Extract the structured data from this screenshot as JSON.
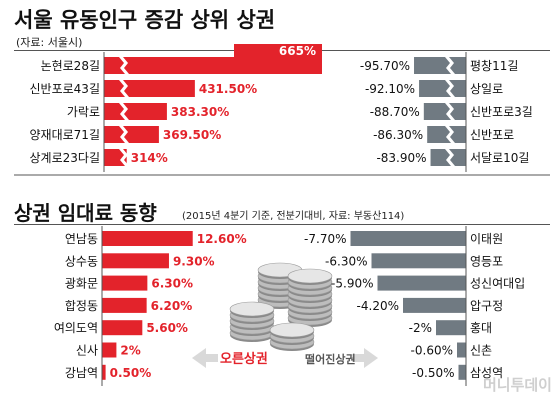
{
  "title": "서울 유동인구 증감 상위 상권",
  "source": "(자료: 서울시)",
  "title2": "상권 임대료 동향",
  "subtitle2": "(2015년 4분기 기준, 전분기대비, 자료: 부동산114)",
  "up_label": "오른상권",
  "down_label": "떨어진상권",
  "watermark": "머니투데이",
  "colors": {
    "red": "#e3232b",
    "grey": "#707a82",
    "line": "#555555"
  },
  "chart_data": [
    {
      "type": "bar",
      "title": "서울 유동인구 증감 상위 상권",
      "series": [
        {
          "name": "",
          "categories": [
            "논현로28길",
            "신반포로43길",
            "가락로",
            "양재대로71길",
            "상계로23다길"
          ],
          "values": [
            665,
            431.5,
            383.3,
            369.5,
            314
          ],
          "labels": [
            "665%",
            "431.50%",
            "383.30%",
            "369.50%",
            "314%"
          ]
        },
        {
          "name": "",
          "categories": [
            "평창11길",
            "상일로",
            "신반포로3길",
            "신반포로",
            "서달로10길"
          ],
          "values": [
            -95.7,
            -92.1,
            -88.7,
            -86.3,
            -83.9
          ],
          "labels": [
            "-95.70%",
            "-92.10%",
            "-88.70%",
            "-86.30%",
            "-83.90%"
          ]
        }
      ]
    },
    {
      "type": "bar",
      "title": "상권 임대료 동향",
      "series": [
        {
          "name": "",
          "categories": [
            "연남동",
            "상수동",
            "광화문",
            "합정동",
            "여의도역",
            "신사",
            "강남역"
          ],
          "values": [
            12.6,
            9.3,
            6.3,
            6.2,
            5.6,
            2,
            0.5
          ],
          "labels": [
            "12.60%",
            "9.30%",
            "6.30%",
            "6.20%",
            "5.60%",
            "2%",
            "0.50%"
          ]
        },
        {
          "name": "",
          "categories": [
            "이태원",
            "영등포",
            "성신여대입",
            "압구정",
            "홍대",
            "신촌",
            "삼성역"
          ],
          "values": [
            -7.7,
            -6.3,
            -5.9,
            -4.2,
            -2,
            -0.6,
            -0.5
          ],
          "labels": [
            "-7.70%",
            "-6.30%",
            "-5.90%",
            "-4.20%",
            "-2%",
            "-0.60%",
            "-0.50%"
          ]
        }
      ]
    }
  ]
}
